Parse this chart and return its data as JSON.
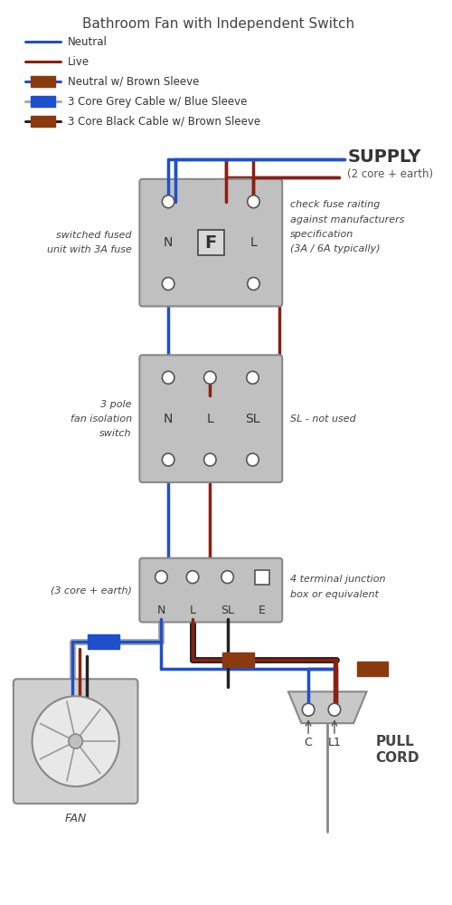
{
  "title": "Bathroom Fan with Independent Switch",
  "bg_color": "#ffffff",
  "blue": "#1e50cc",
  "red": "#8B2010",
  "grey_cable": "#aaaaaa",
  "black_cable": "#222222",
  "brown": "#8B3A10",
  "box_fill": "#c0c0c0",
  "box_edge": "#888888",
  "legend": [
    {
      "label": "Neutral",
      "line": "#1e50cc",
      "sleeve": null
    },
    {
      "label": "Live",
      "line": "#8B2010",
      "sleeve": null
    },
    {
      "label": "Neutral w/ Brown Sleeve",
      "line": "#1e50cc",
      "sleeve": "#8B3A10"
    },
    {
      "label": "3 Core Grey Cable w/ Blue Sleeve",
      "line": "#aaaaaa",
      "sleeve": "#1e50cc"
    },
    {
      "label": "3 Core Black Cable w/ Brown Sleeve",
      "line": "#222222",
      "sleeve": "#8B3A10"
    }
  ],
  "supply_label": "SUPPLY",
  "supply_sub": "(2 core + earth)",
  "fused_left1": "switched fused",
  "fused_left2": "unit with 3A fuse",
  "fused_right1": "check fuse raiting",
  "fused_right2": "against manufacturers",
  "fused_right3": "specification",
  "fused_right4": "(3A / 6A typically)",
  "iso_left1": "3 pole",
  "iso_left2": "fan isolation",
  "iso_left3": "switch",
  "iso_right": "SL - not used",
  "junc_left": "(3 core + earth)",
  "junc_right1": "4 terminal junction",
  "junc_right2": "box or equivalent",
  "fan_label": "FAN",
  "pull_c": "C",
  "pull_l1": "L1",
  "pull_label1": "PULL",
  "pull_label2": "CORD"
}
